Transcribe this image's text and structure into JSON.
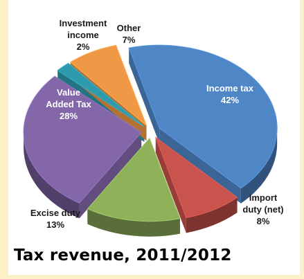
{
  "caption": "Tax revenue, 2011/2012",
  "chart_data": {
    "type": "pie",
    "title": "Tax revenue, 2011/2012",
    "slices": [
      {
        "name": "Income tax",
        "value_label": "42%",
        "value": 42,
        "color": "#4f86c6"
      },
      {
        "name": "Import duty (net)",
        "value_label": "8%",
        "value": 8,
        "color": "#c9534d"
      },
      {
        "name": "Excise duty",
        "value_label": "13%",
        "value": 13,
        "color": "#8fb15a"
      },
      {
        "name": "Value Added Tax",
        "value_label": "28%",
        "value": 28,
        "color": "#8367a9"
      },
      {
        "name": "Investment income",
        "value_label": "2%",
        "value": 2,
        "color": "#2f9aae"
      },
      {
        "name": "Other",
        "value_label": "7%",
        "value": 7,
        "color": "#ef9845"
      }
    ],
    "label_lines": {
      "income_tax": [
        "Income tax",
        "42%"
      ],
      "import_duty": [
        "Import",
        "duty (net)",
        "8%"
      ],
      "excise_duty": [
        "Excise duty",
        "13%"
      ],
      "vat": [
        "Value",
        "Added Tax",
        "28%"
      ],
      "investment_income": [
        "Investment",
        "income",
        "2%"
      ],
      "other": [
        "Other",
        "7%"
      ]
    }
  }
}
